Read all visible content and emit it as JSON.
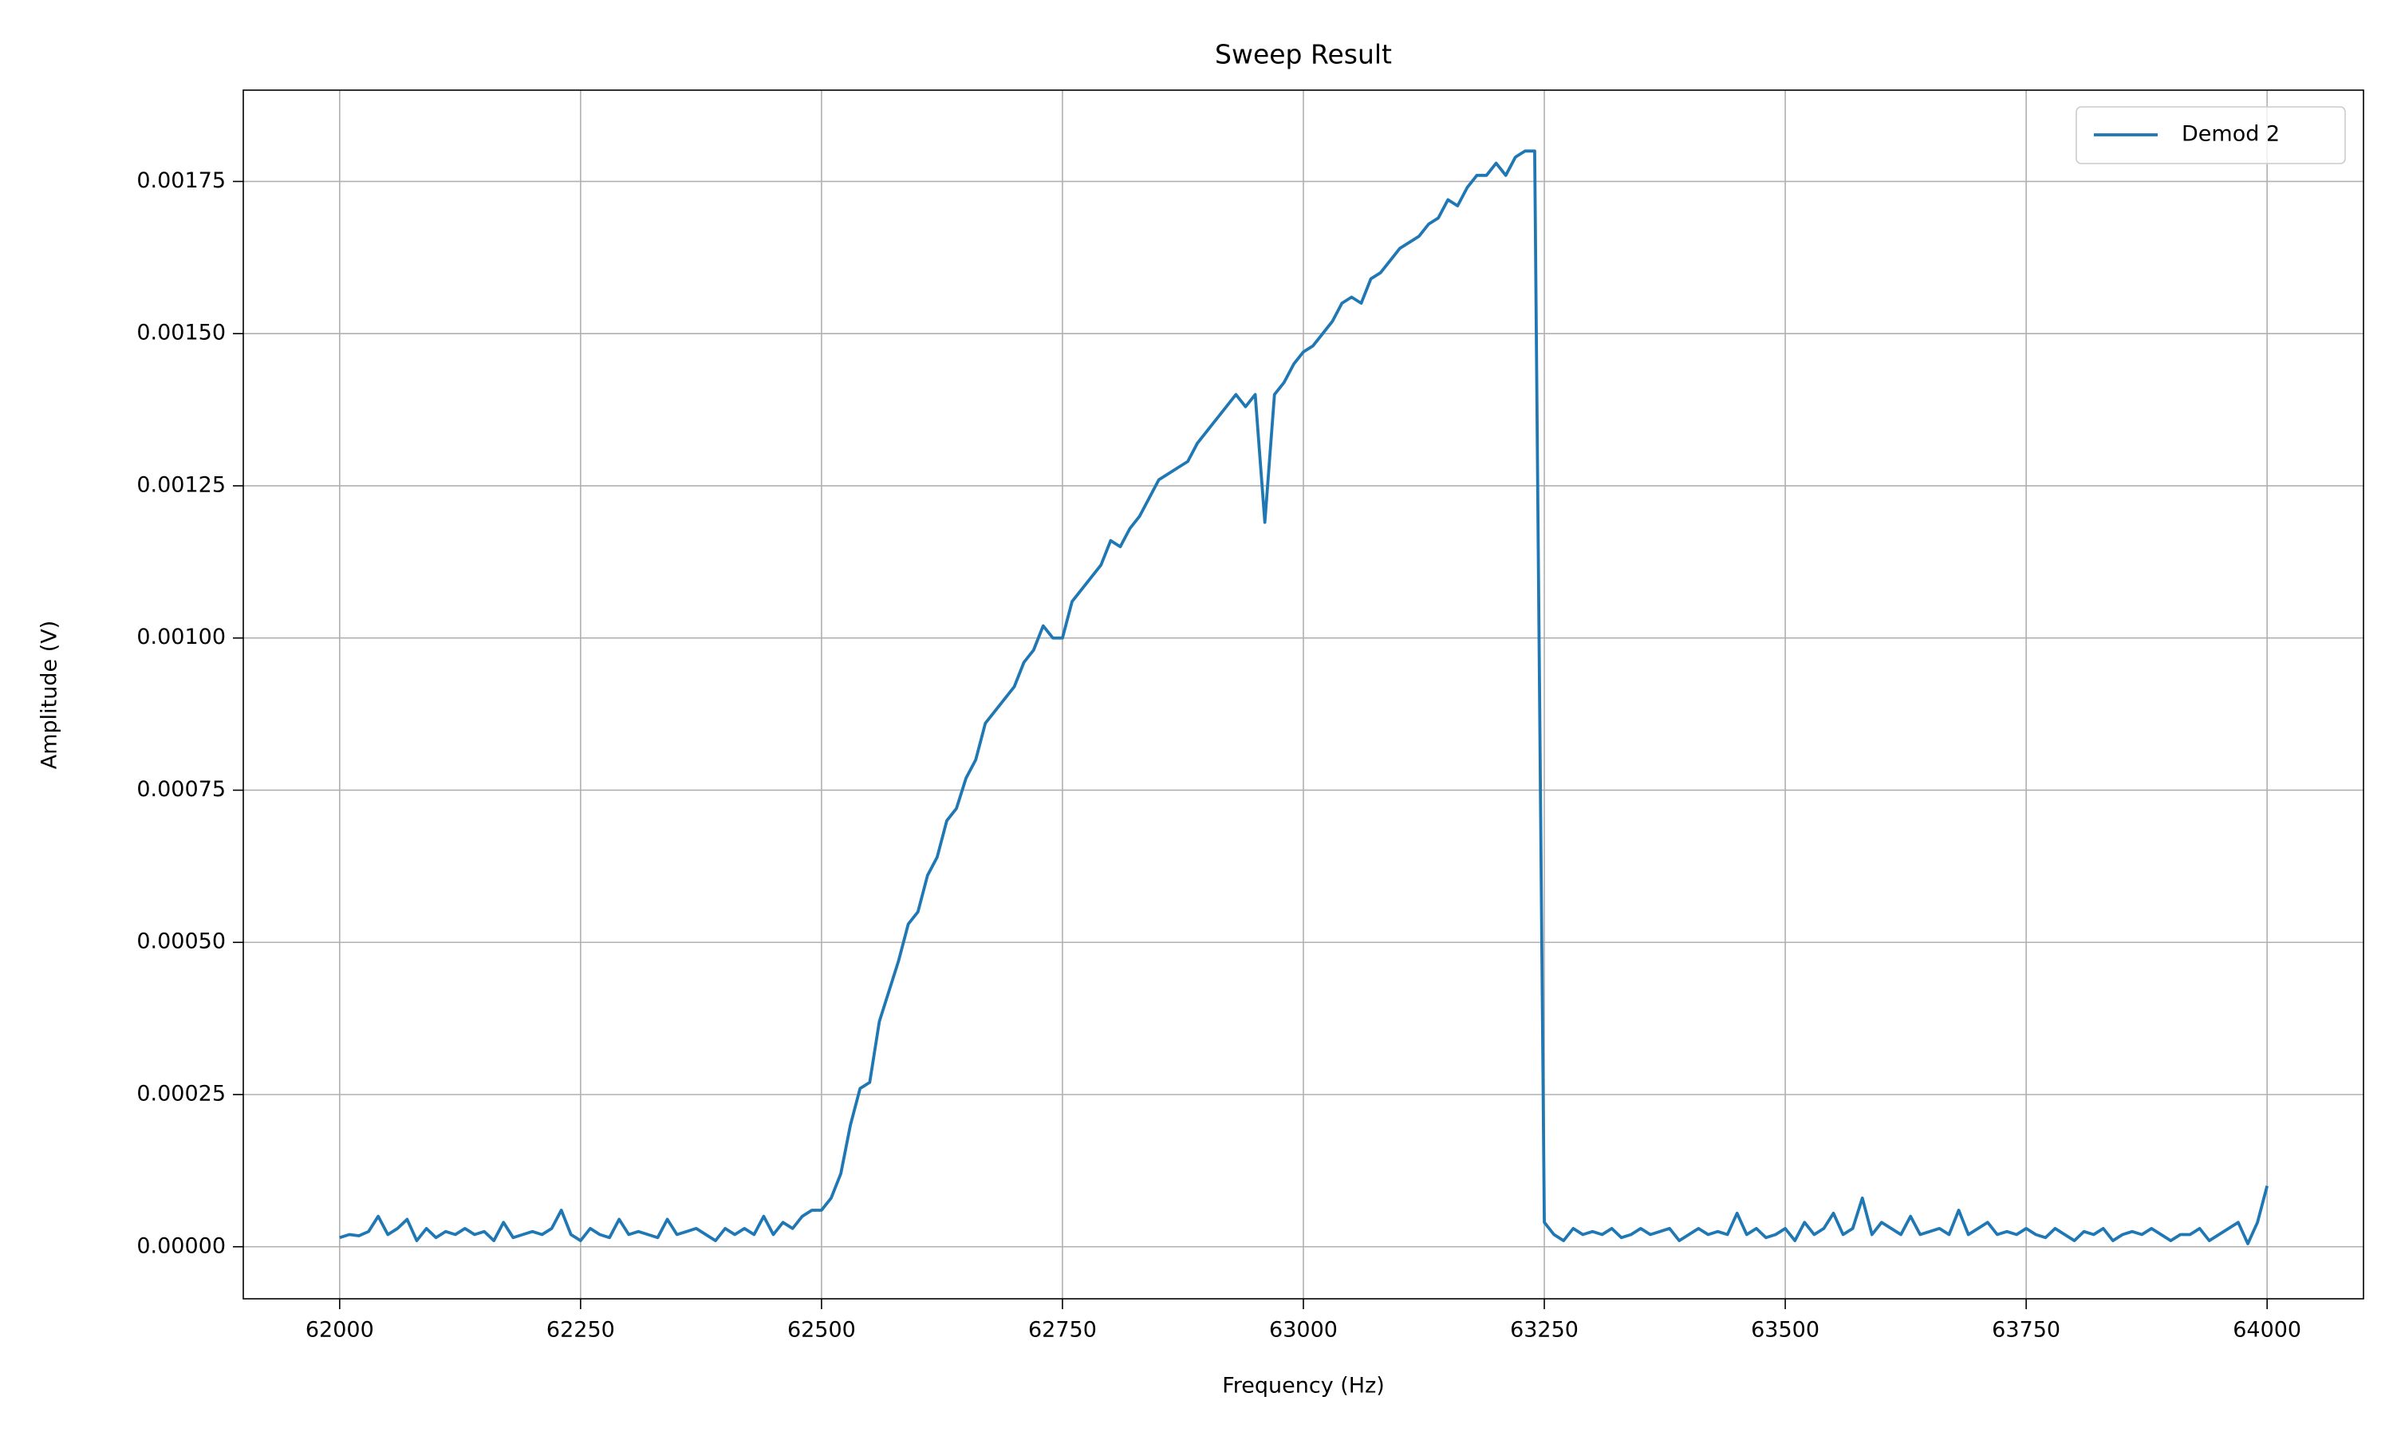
{
  "chart_data": {
    "type": "line",
    "title": "Sweep Result",
    "xlabel": "Frequency (Hz)",
    "ylabel": "Amplitude (V)",
    "x": [
      62000,
      62010,
      62020,
      62030,
      62040,
      62050,
      62060,
      62070,
      62080,
      62090,
      62100,
      62110,
      62120,
      62130,
      62140,
      62150,
      62160,
      62170,
      62180,
      62190,
      62200,
      62210,
      62220,
      62230,
      62240,
      62250,
      62260,
      62270,
      62280,
      62290,
      62300,
      62310,
      62320,
      62330,
      62340,
      62350,
      62360,
      62370,
      62380,
      62390,
      62400,
      62410,
      62420,
      62430,
      62440,
      62450,
      62460,
      62470,
      62480,
      62490,
      62500,
      62510,
      62520,
      62530,
      62540,
      62550,
      62560,
      62570,
      62580,
      62590,
      62600,
      62610,
      62620,
      62630,
      62640,
      62650,
      62660,
      62670,
      62680,
      62690,
      62700,
      62710,
      62720,
      62730,
      62740,
      62750,
      62760,
      62770,
      62780,
      62790,
      62800,
      62810,
      62820,
      62830,
      62840,
      62850,
      62860,
      62870,
      62880,
      62890,
      62900,
      62910,
      62920,
      62930,
      62940,
      62950,
      62960,
      62970,
      62980,
      62990,
      63000,
      63010,
      63020,
      63030,
      63040,
      63050,
      63060,
      63070,
      63080,
      63090,
      63100,
      63110,
      63120,
      63130,
      63140,
      63150,
      63160,
      63170,
      63180,
      63190,
      63200,
      63210,
      63220,
      63230,
      63240,
      63250,
      63260,
      63270,
      63280,
      63290,
      63300,
      63310,
      63320,
      63330,
      63340,
      63350,
      63360,
      63370,
      63380,
      63390,
      63400,
      63410,
      63420,
      63430,
      63440,
      63450,
      63460,
      63470,
      63480,
      63490,
      63500,
      63510,
      63520,
      63530,
      63540,
      63550,
      63560,
      63570,
      63580,
      63590,
      63600,
      63610,
      63620,
      63630,
      63640,
      63650,
      63660,
      63670,
      63680,
      63690,
      63700,
      63710,
      63720,
      63730,
      63740,
      63750,
      63760,
      63770,
      63780,
      63790,
      63800,
      63810,
      63820,
      63830,
      63840,
      63850,
      63860,
      63870,
      63880,
      63890,
      63900,
      63910,
      63920,
      63930,
      63940,
      63950,
      63960,
      63970,
      63980,
      63990,
      64000
    ],
    "series": [
      {
        "name": "Demod 2",
        "color": "#1f77b4",
        "values": [
          1.5e-05,
          2e-05,
          1.8e-05,
          2.5e-05,
          5e-05,
          2e-05,
          3e-05,
          4.5e-05,
          1e-05,
          3e-05,
          1.5e-05,
          2.5e-05,
          2e-05,
          3e-05,
          2e-05,
          2.5e-05,
          1e-05,
          4e-05,
          1.5e-05,
          2e-05,
          2.5e-05,
          2e-05,
          3e-05,
          6e-05,
          2e-05,
          1e-05,
          3e-05,
          2e-05,
          1.5e-05,
          4.5e-05,
          2e-05,
          2.5e-05,
          2e-05,
          1.5e-05,
          4.5e-05,
          2e-05,
          2.5e-05,
          3e-05,
          2e-05,
          1e-05,
          3e-05,
          2e-05,
          3e-05,
          2e-05,
          5e-05,
          2e-05,
          4e-05,
          3e-05,
          5e-05,
          6e-05,
          6e-05,
          8e-05,
          0.00012,
          0.0002,
          0.00026,
          0.00027,
          0.00037,
          0.00042,
          0.00047,
          0.00053,
          0.00055,
          0.00061,
          0.00064,
          0.0007,
          0.00072,
          0.00077,
          0.0008,
          0.00086,
          0.00088,
          0.0009,
          0.00092,
          0.00096,
          0.00098,
          0.00102,
          0.001,
          0.001,
          0.00106,
          0.00108,
          0.0011,
          0.00112,
          0.00116,
          0.00115,
          0.00118,
          0.0012,
          0.00123,
          0.00126,
          0.00127,
          0.00128,
          0.00129,
          0.00132,
          0.00134,
          0.00136,
          0.00138,
          0.0014,
          0.00138,
          0.0014,
          0.00119,
          0.0014,
          0.00142,
          0.00145,
          0.00147,
          0.00148,
          0.0015,
          0.00152,
          0.00155,
          0.00156,
          0.00155,
          0.00159,
          0.0016,
          0.00162,
          0.00164,
          0.00165,
          0.00166,
          0.00168,
          0.00169,
          0.00172,
          0.00171,
          0.00174,
          0.00176,
          0.00176,
          0.00178,
          0.00176,
          0.00179,
          0.0018,
          0.0018,
          4e-05,
          2e-05,
          1e-05,
          3e-05,
          2e-05,
          2.5e-05,
          2e-05,
          3e-05,
          1.5e-05,
          2e-05,
          3e-05,
          2e-05,
          2.5e-05,
          3e-05,
          1e-05,
          2e-05,
          3e-05,
          2e-05,
          2.5e-05,
          2e-05,
          5.5e-05,
          2e-05,
          3e-05,
          1.5e-05,
          2e-05,
          3e-05,
          1e-05,
          4e-05,
          2e-05,
          3e-05,
          5.5e-05,
          2e-05,
          3e-05,
          8e-05,
          2e-05,
          4e-05,
          3e-05,
          2e-05,
          5e-05,
          2e-05,
          2.5e-05,
          3e-05,
          2e-05,
          6e-05,
          2e-05,
          3e-05,
          4e-05,
          2e-05,
          2.5e-05,
          2e-05,
          3e-05,
          2e-05,
          1.5e-05,
          3e-05,
          2e-05,
          1e-05,
          2.5e-05,
          2e-05,
          3e-05,
          1e-05,
          2e-05,
          2.5e-05,
          2e-05,
          3e-05,
          2e-05,
          1e-05,
          2e-05,
          2e-05,
          3e-05,
          1e-05,
          2e-05,
          3e-05,
          4e-05,
          5e-06,
          4e-05,
          0.0001
        ]
      }
    ],
    "xlim": [
      61900,
      64100
    ],
    "ylim": [
      -8.55e-05,
      0.0019
    ],
    "xticks": [
      62000,
      62250,
      62500,
      62750,
      63000,
      63250,
      63500,
      63750,
      64000
    ],
    "yticks": [
      {
        "value": 0,
        "label": "0.00000"
      },
      {
        "value": 0.00025,
        "label": "0.00025"
      },
      {
        "value": 0.0005,
        "label": "0.00050"
      },
      {
        "value": 0.00075,
        "label": "0.00075"
      },
      {
        "value": 0.001,
        "label": "0.00100"
      },
      {
        "value": 0.00125,
        "label": "0.00125"
      },
      {
        "value": 0.0015,
        "label": "0.00150"
      },
      {
        "value": 0.00175,
        "label": "0.00175"
      }
    ],
    "grid": true,
    "legend": "upper right"
  }
}
